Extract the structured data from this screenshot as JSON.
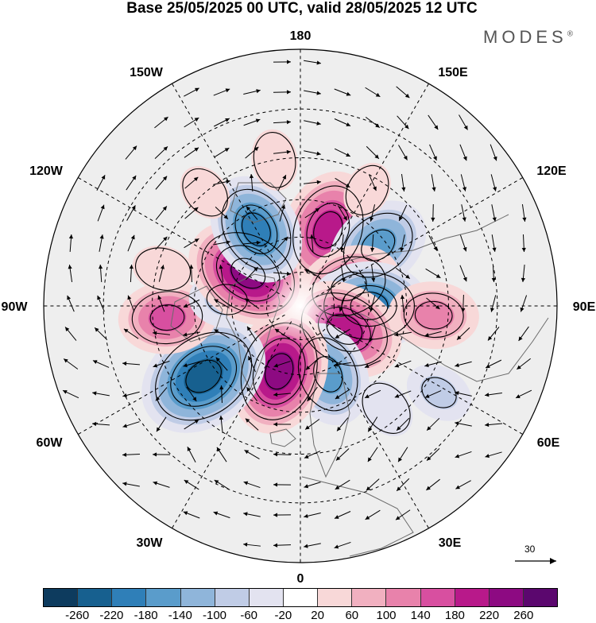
{
  "title": "Base 25/05/2025 00 UTC, valid 28/05/2025 12 UTC",
  "brand": "MODES",
  "brand_mark": "®",
  "longitude_labels": {
    "lon_180": "180",
    "lon_150e": "150E",
    "lon_120e": "120E",
    "lon_90e": "90E",
    "lon_60e": "60E",
    "lon_30e": "30E",
    "lon_0": "0",
    "lon_30w": "30W",
    "lon_60w": "60W",
    "lon_90w": "90W",
    "lon_120w": "120W",
    "lon_150w": "150W"
  },
  "colorbar": {
    "colors": [
      "#0d3b5e",
      "#17608f",
      "#2f7fb8",
      "#5a9ccb",
      "#8fb5da",
      "#c0cce6",
      "#e3e3f0",
      "#ffffff",
      "#f8d8d8",
      "#f1b0c0",
      "#e882ab",
      "#d84fa0",
      "#b8198a",
      "#8d0a82",
      "#5b076e"
    ],
    "ticks": [
      "-260",
      "-220",
      "-180",
      "-140",
      "-100",
      "-60",
      "-20",
      "20",
      "60",
      "100",
      "140",
      "180",
      "220",
      "260"
    ]
  },
  "reference_vector_label": "30",
  "anomaly_centers": [
    {
      "lon": 160,
      "lat": 55,
      "value": 200
    },
    {
      "lon": 128,
      "lat": 48,
      "value": -160
    },
    {
      "lon": 112,
      "lat": 67,
      "value": 160
    },
    {
      "lon": 90,
      "lat": 60,
      "value": -200
    },
    {
      "lon": 62,
      "lat": 68,
      "value": 200
    },
    {
      "lon": 86,
      "lat": 35,
      "value": 120
    },
    {
      "lon": 58,
      "lat": 25,
      "value": -60
    },
    {
      "lon": 22,
      "lat": 58,
      "value": -160
    },
    {
      "lon": -18,
      "lat": 60,
      "value": 220
    },
    {
      "lon": -54,
      "lat": 40,
      "value": -240
    },
    {
      "lon": -85,
      "lat": 35,
      "value": 140
    },
    {
      "lon": -95,
      "lat": 58,
      "value": -80
    },
    {
      "lon": -122,
      "lat": 63,
      "value": 220
    },
    {
      "lon": -150,
      "lat": 52,
      "value": -180
    },
    {
      "lon": -170,
      "lat": 30,
      "value": 40
    },
    {
      "lon": -140,
      "lat": 30,
      "value": 30
    },
    {
      "lon": -105,
      "lat": 32,
      "value": 40
    },
    {
      "lon": 40,
      "lat": 35,
      "value": -40
    },
    {
      "lon": 150,
      "lat": 35,
      "value": 30
    }
  ]
}
